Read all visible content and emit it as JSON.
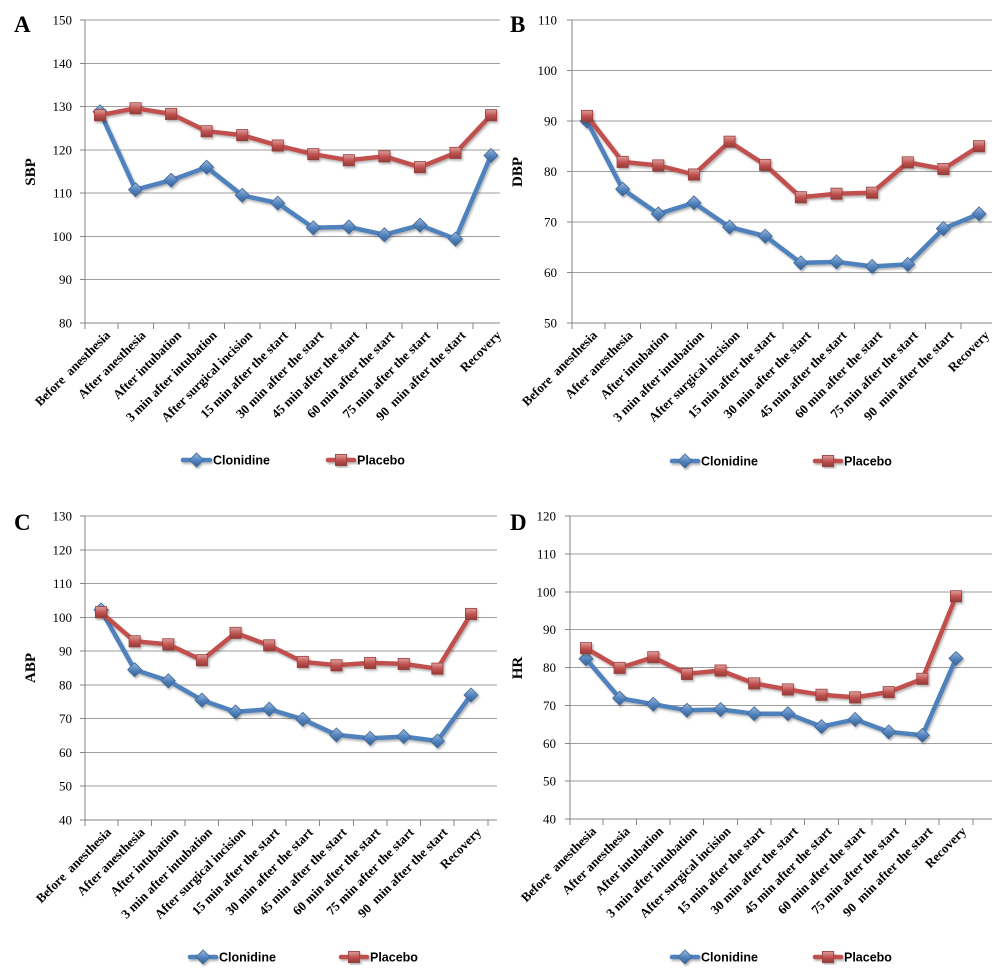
{
  "chart_data": [
    {
      "panel_label": "A",
      "type": "line",
      "ylabel": "SBP",
      "ylim": [
        80,
        150
      ],
      "yticks": [
        80,
        90,
        100,
        110,
        120,
        130,
        140,
        150
      ],
      "grid": true,
      "legend": "bottom",
      "categories": [
        "Before  anesthesia",
        "After anesthesia",
        "After intubation",
        "3 min after intubation",
        "After surgical incision",
        "15 min after the start",
        "30 min after the start",
        "45 min after the start",
        "60 min after the start",
        "75 min after the start",
        "90  min after the start",
        "Recovery"
      ],
      "series": [
        {
          "name": "Clonidine",
          "color": "#4F81BD",
          "marker": "diamond",
          "values": [
            128.8,
            110.8,
            113.0,
            116.0,
            109.5,
            107.7,
            102.0,
            102.2,
            100.4,
            102.6,
            99.4,
            118.7
          ]
        },
        {
          "name": "Placebo",
          "color": "#C0504D",
          "marker": "square",
          "values": [
            128.0,
            129.6,
            128.3,
            124.3,
            123.4,
            121.0,
            119.0,
            117.6,
            118.5,
            116.0,
            119.3,
            128.0
          ]
        }
      ]
    },
    {
      "panel_label": "B",
      "type": "line",
      "ylabel": "DBP",
      "ylim": [
        50,
        110
      ],
      "yticks": [
        50,
        60,
        70,
        80,
        90,
        100,
        110
      ],
      "grid": true,
      "legend": "bottom",
      "categories": [
        "Before  anesthesia",
        "After anesthesia",
        "After intubation",
        "3 min after intubation",
        "After surgical incision",
        "15 min after the start",
        "30 min after the start",
        "45 min after the start",
        "60 min after the start",
        "75 min after the start",
        "90  min after the start",
        "Recovery"
      ],
      "series": [
        {
          "name": "Clonidine",
          "color": "#4F81BD",
          "marker": "diamond",
          "values": [
            90.0,
            76.5,
            71.6,
            73.8,
            69.0,
            67.2,
            61.9,
            62.1,
            61.2,
            61.6,
            68.7,
            71.6
          ]
        },
        {
          "name": "Placebo",
          "color": "#C0504D",
          "marker": "square",
          "values": [
            91.0,
            81.9,
            81.2,
            79.4,
            85.9,
            81.3,
            74.9,
            75.6,
            75.8,
            81.8,
            80.5,
            85.0
          ]
        }
      ]
    },
    {
      "panel_label": "C",
      "type": "line",
      "ylabel": "ABP",
      "ylim": [
        40,
        130
      ],
      "yticks": [
        40,
        50,
        60,
        70,
        80,
        90,
        100,
        110,
        120,
        130
      ],
      "grid": true,
      "legend": "bottom",
      "categories": [
        "Before  anesthesia",
        "After anesthesia",
        "After intubation",
        "3 min after intubation",
        "After surgical incision",
        "15 min after the start",
        "30 min after the start",
        "45 min after the start",
        "60 min after the start",
        "75 min after the start",
        "90  min after the start",
        "Recovery"
      ],
      "series": [
        {
          "name": "Clonidine",
          "color": "#4F81BD",
          "marker": "diamond",
          "values": [
            102.2,
            84.5,
            81.2,
            75.5,
            72.0,
            72.8,
            69.8,
            65.2,
            64.2,
            64.7,
            63.4,
            77.0
          ]
        },
        {
          "name": "Placebo",
          "color": "#C0504D",
          "marker": "square",
          "values": [
            101.5,
            92.9,
            92.0,
            87.3,
            95.4,
            91.7,
            86.8,
            85.8,
            86.5,
            86.2,
            84.8,
            101.0
          ]
        }
      ]
    },
    {
      "panel_label": "D",
      "type": "line",
      "ylabel": "HR",
      "ylim": [
        40,
        120
      ],
      "yticks": [
        40,
        50,
        60,
        70,
        80,
        90,
        100,
        110,
        120
      ],
      "grid": true,
      "legend": "bottom",
      "categories": [
        "Before  anesthesia",
        "After anesthesia",
        "After intubation",
        "3 min after intubation",
        "After surgical incision",
        "15 min after the start",
        "30 min after the start",
        "45 min after the start",
        "60 min after the start",
        "75 min after the start",
        "90  min after the start",
        "Recovery"
      ],
      "series": [
        {
          "name": "Clonidine",
          "color": "#4F81BD",
          "marker": "diamond",
          "values": [
            82.3,
            71.9,
            70.3,
            68.7,
            68.9,
            67.8,
            67.8,
            64.4,
            66.3,
            63.0,
            62.1,
            82.4
          ]
        },
        {
          "name": "Placebo",
          "color": "#C0504D",
          "marker": "square",
          "values": [
            85.1,
            79.9,
            82.7,
            78.3,
            79.2,
            75.8,
            74.2,
            72.8,
            72.1,
            73.5,
            77.0,
            98.8
          ]
        }
      ]
    }
  ]
}
